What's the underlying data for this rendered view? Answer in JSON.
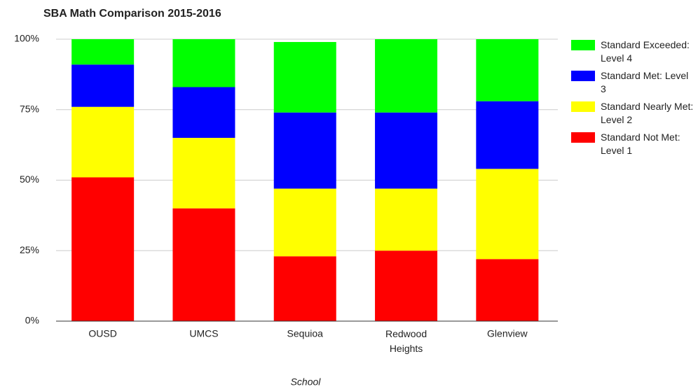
{
  "chart_data": {
    "type": "stacked_bar",
    "title": "SBA Math Comparison 2015-2016",
    "x_label": "School",
    "categories": [
      "OUSD",
      "UMCS",
      "Sequioa",
      "Redwood Heights",
      "Glenview"
    ],
    "series": [
      {
        "name": "Standard Not Met: Level 1",
        "color": "#ff0000",
        "values": [
          51,
          40,
          23,
          25,
          22
        ]
      },
      {
        "name": "Standard Nearly Met: Level 2",
        "color": "#ffff00",
        "values": [
          25,
          25,
          24,
          22,
          32
        ]
      },
      {
        "name": "Standard Met: Level 3",
        "color": "#0000ff",
        "values": [
          15,
          18,
          27,
          27,
          24
        ]
      },
      {
        "name": "Standard Exceeded: Level 4",
        "color": "#00ff00",
        "values": [
          9,
          17,
          25,
          26,
          22
        ]
      }
    ],
    "ylim": [
      0,
      100
    ],
    "yticks": [
      {
        "value": 0,
        "label": "0%"
      },
      {
        "value": 25,
        "label": "25%"
      },
      {
        "value": 50,
        "label": "50%"
      },
      {
        "value": 75,
        "label": "75%"
      },
      {
        "value": 100,
        "label": "100%"
      }
    ],
    "grid": true,
    "legend": "right"
  }
}
